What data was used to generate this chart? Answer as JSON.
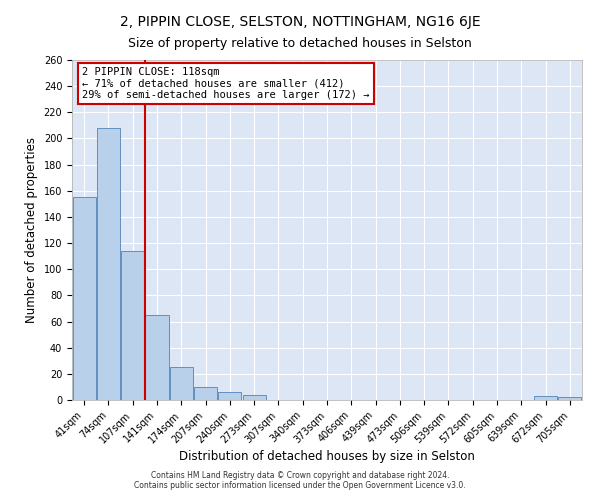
{
  "title": "2, PIPPIN CLOSE, SELSTON, NOTTINGHAM, NG16 6JE",
  "subtitle": "Size of property relative to detached houses in Selston",
  "xlabel": "Distribution of detached houses by size in Selston",
  "ylabel": "Number of detached properties",
  "bar_labels": [
    "41sqm",
    "74sqm",
    "107sqm",
    "141sqm",
    "174sqm",
    "207sqm",
    "240sqm",
    "273sqm",
    "307sqm",
    "340sqm",
    "373sqm",
    "406sqm",
    "439sqm",
    "473sqm",
    "506sqm",
    "539sqm",
    "572sqm",
    "605sqm",
    "639sqm",
    "672sqm",
    "705sqm"
  ],
  "bar_values": [
    155,
    208,
    114,
    65,
    25,
    10,
    6,
    4,
    0,
    0,
    0,
    0,
    0,
    0,
    0,
    0,
    0,
    0,
    0,
    3,
    2
  ],
  "bar_color": "#b8d0ea",
  "bar_edge_color": "#6090c0",
  "vline_color": "#cc0000",
  "annotation_text": "2 PIPPIN CLOSE: 118sqm\n← 71% of detached houses are smaller (412)\n29% of semi-detached houses are larger (172) →",
  "annotation_box_color": "#ffffff",
  "annotation_box_edge": "#cc0000",
  "ylim": [
    0,
    260
  ],
  "yticks": [
    0,
    20,
    40,
    60,
    80,
    100,
    120,
    140,
    160,
    180,
    200,
    220,
    240,
    260
  ],
  "background_color": "#dce6f5",
  "footer_line1": "Contains HM Land Registry data © Crown copyright and database right 2024.",
  "footer_line2": "Contains public sector information licensed under the Open Government Licence v3.0.",
  "title_fontsize": 10,
  "subtitle_fontsize": 9,
  "tick_fontsize": 7,
  "ylabel_fontsize": 8.5,
  "xlabel_fontsize": 8.5,
  "footer_fontsize": 5.5
}
